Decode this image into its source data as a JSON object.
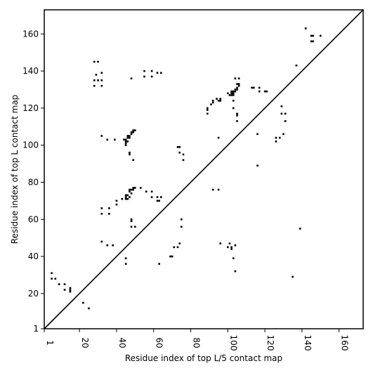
{
  "chart_data": {
    "type": "scatter",
    "xlabel": "Residue index of top L/5 contact map",
    "ylabel": "Residue index of top L contact map",
    "xlim": [
      1,
      173
    ],
    "ylim": [
      1,
      173
    ],
    "xticks": [
      "1",
      "20",
      "40",
      "60",
      "80",
      "100",
      "120",
      "140",
      "160"
    ],
    "yticks": [
      "1",
      "20",
      "40",
      "60",
      "80",
      "100",
      "120",
      "140",
      "160"
    ],
    "grid": false,
    "diagonal": true,
    "color": "#000000",
    "upper_points": [
      [
        28,
        145
      ],
      [
        30,
        145
      ],
      [
        29,
        138
      ],
      [
        28,
        135
      ],
      [
        30,
        135
      ],
      [
        28,
        132
      ],
      [
        32,
        139
      ],
      [
        32,
        135
      ],
      [
        32,
        132
      ],
      [
        55,
        140
      ],
      [
        55,
        137
      ],
      [
        59,
        140
      ],
      [
        59,
        137
      ],
      [
        62,
        139
      ],
      [
        64,
        139
      ],
      [
        48,
        136
      ],
      [
        32,
        105
      ],
      [
        35,
        103
      ],
      [
        39,
        103
      ],
      [
        44,
        103
      ],
      [
        45,
        103
      ],
      [
        45,
        102
      ],
      [
        46,
        102
      ],
      [
        46,
        104
      ],
      [
        46,
        105
      ],
      [
        47,
        104
      ],
      [
        47,
        105
      ],
      [
        48,
        106
      ],
      [
        48,
        107
      ],
      [
        49,
        107
      ],
      [
        49,
        108
      ],
      [
        50,
        108
      ],
      [
        45,
        101
      ],
      [
        45,
        100
      ],
      [
        47,
        96
      ],
      [
        47,
        95
      ],
      [
        49,
        92
      ],
      [
        89,
        120
      ],
      [
        89,
        119
      ],
      [
        89,
        117
      ],
      [
        92,
        124
      ],
      [
        92,
        123
      ],
      [
        94,
        125
      ],
      [
        95,
        124
      ],
      [
        96,
        125
      ],
      [
        96,
        124
      ],
      [
        100,
        128
      ],
      [
        101,
        127
      ],
      [
        102,
        127
      ],
      [
        102,
        128
      ],
      [
        103,
        128
      ],
      [
        103,
        127
      ],
      [
        102,
        129
      ],
      [
        103,
        129
      ],
      [
        104,
        130
      ],
      [
        104,
        129
      ],
      [
        105,
        130
      ],
      [
        105,
        131
      ],
      [
        106,
        132
      ],
      [
        106,
        133
      ],
      [
        105,
        133
      ],
      [
        106,
        136
      ],
      [
        104,
        136
      ],
      [
        103,
        124
      ],
      [
        103,
        120
      ],
      [
        105,
        117
      ],
      [
        105,
        116
      ],
      [
        105,
        113
      ],
      [
        113,
        131
      ],
      [
        114,
        131
      ],
      [
        117,
        131
      ],
      [
        117,
        129
      ],
      [
        120,
        129
      ],
      [
        121,
        129
      ],
      [
        91,
        122
      ],
      [
        95,
        104
      ],
      [
        116,
        106
      ],
      [
        129,
        121
      ],
      [
        129,
        117
      ],
      [
        131,
        117
      ],
      [
        131,
        113
      ],
      [
        137,
        143
      ],
      [
        142,
        163
      ],
      [
        145,
        159
      ],
      [
        146,
        159
      ],
      [
        150,
        159
      ],
      [
        145,
        156
      ],
      [
        146,
        156
      ],
      [
        130,
        106
      ],
      [
        128,
        104
      ],
      [
        126,
        104
      ],
      [
        126,
        102
      ]
    ],
    "lower_points": [
      [
        5,
        31
      ],
      [
        5,
        28
      ],
      [
        7,
        28
      ],
      [
        9,
        25
      ],
      [
        12,
        25
      ],
      [
        12,
        22
      ],
      [
        15,
        23
      ],
      [
        15,
        22
      ],
      [
        15,
        21
      ],
      [
        22,
        15
      ],
      [
        25,
        12
      ],
      [
        32,
        48
      ],
      [
        35,
        46
      ],
      [
        38,
        46
      ],
      [
        32,
        66
      ],
      [
        36,
        66
      ],
      [
        32,
        63
      ],
      [
        36,
        63
      ],
      [
        40,
        70
      ],
      [
        40,
        68
      ],
      [
        43,
        71
      ],
      [
        45,
        73
      ],
      [
        45,
        72
      ],
      [
        45,
        71
      ],
      [
        46,
        71
      ],
      [
        46,
        73
      ],
      [
        47,
        75
      ],
      [
        47,
        76
      ],
      [
        47,
        72
      ],
      [
        48,
        74
      ],
      [
        48,
        76
      ],
      [
        49,
        77
      ],
      [
        49,
        76
      ],
      [
        50,
        77
      ],
      [
        53,
        77
      ],
      [
        56,
        75
      ],
      [
        59,
        75
      ],
      [
        59,
        72
      ],
      [
        62,
        72
      ],
      [
        62,
        70
      ],
      [
        63,
        70
      ],
      [
        64,
        72
      ],
      [
        48,
        60
      ],
      [
        48,
        59
      ],
      [
        48,
        56
      ],
      [
        50,
        56
      ],
      [
        45,
        39
      ],
      [
        45,
        36
      ],
      [
        63,
        36
      ],
      [
        69,
        40
      ],
      [
        70,
        40
      ],
      [
        71,
        45
      ],
      [
        73,
        45
      ],
      [
        74,
        47
      ],
      [
        73,
        99
      ],
      [
        74,
        99
      ],
      [
        74,
        96
      ],
      [
        76,
        95
      ],
      [
        76,
        92
      ],
      [
        75,
        60
      ],
      [
        75,
        56
      ],
      [
        92,
        76
      ],
      [
        95,
        76
      ],
      [
        96,
        47
      ],
      [
        100,
        45
      ],
      [
        101,
        47
      ],
      [
        102,
        45
      ],
      [
        102,
        44
      ],
      [
        103,
        39
      ],
      [
        104,
        46
      ],
      [
        104,
        32
      ],
      [
        116,
        89
      ],
      [
        135,
        29
      ],
      [
        139,
        55
      ]
    ]
  }
}
